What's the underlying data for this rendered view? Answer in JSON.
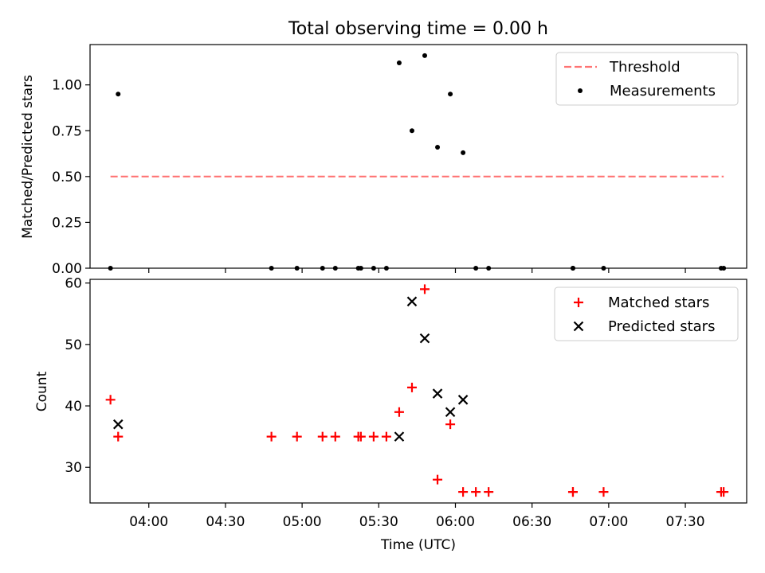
{
  "title": "Total observing time = 0.00 h",
  "chart_data": [
    {
      "type": "scatter",
      "ylabel": "Matched/Predicted stars",
      "ylim": [
        0,
        1.22
      ],
      "yticks": [
        "0.00",
        "0.25",
        "0.50",
        "0.75",
        "1.00"
      ],
      "ytick_values": [
        0,
        0.25,
        0.5,
        0.75,
        1.0
      ],
      "xlim": [
        "03:37",
        "07:54"
      ],
      "threshold": {
        "name": "Threshold",
        "value": 0.5,
        "x_start": "03:45",
        "x_end": "07:45",
        "color": "#ff7373"
      },
      "series": [
        {
          "name": "Measurements",
          "color": "#000000",
          "marker": "dot",
          "x": [
            "03:45",
            "03:48",
            "04:48",
            "04:58",
            "05:08",
            "05:13",
            "05:22",
            "05:23",
            "05:28",
            "05:33",
            "05:38",
            "05:43",
            "05:48",
            "05:53",
            "05:58",
            "06:03",
            "06:08",
            "06:13",
            "06:46",
            "06:46",
            "06:58",
            "07:44",
            "07:45"
          ],
          "y": [
            0,
            0.95,
            0,
            0,
            0,
            0,
            0,
            0,
            0,
            0,
            1.12,
            0.75,
            1.16,
            0.66,
            0.95,
            0.63,
            0,
            0,
            0,
            0,
            0,
            0,
            0
          ]
        }
      ],
      "legend_position": "top-right"
    },
    {
      "type": "scatter",
      "xlabel": "Time (UTC)",
      "ylabel": "Count",
      "ylim": [
        24.2,
        60.6
      ],
      "yticks": [
        "30",
        "40",
        "50",
        "60"
      ],
      "ytick_values": [
        30,
        40,
        50,
        60
      ],
      "xlim": [
        "03:37",
        "07:54"
      ],
      "xticks": [
        "04:00",
        "04:30",
        "05:00",
        "05:30",
        "06:00",
        "06:30",
        "07:00",
        "07:30"
      ],
      "series": [
        {
          "name": "Matched stars",
          "color": "#ff0000",
          "marker": "plus",
          "x": [
            "03:45",
            "03:48",
            "04:48",
            "04:58",
            "05:08",
            "05:13",
            "05:22",
            "05:23",
            "05:28",
            "05:33",
            "05:38",
            "05:43",
            "05:48",
            "05:53",
            "05:58",
            "06:03",
            "06:08",
            "06:13",
            "06:46",
            "06:46",
            "06:58",
            "07:44",
            "07:45"
          ],
          "y": [
            41,
            35,
            35,
            35,
            35,
            35,
            35,
            35,
            35,
            35,
            39,
            43,
            59,
            28,
            37,
            26,
            26,
            26,
            26,
            26,
            26,
            26,
            26
          ]
        },
        {
          "name": "Predicted stars",
          "color": "#000000",
          "marker": "x",
          "x": [
            "03:48",
            "05:38",
            "05:43",
            "05:48",
            "05:53",
            "05:58",
            "06:03"
          ],
          "y": [
            37,
            35,
            57,
            51,
            42,
            39,
            41
          ]
        }
      ],
      "legend_position": "top-right"
    }
  ]
}
